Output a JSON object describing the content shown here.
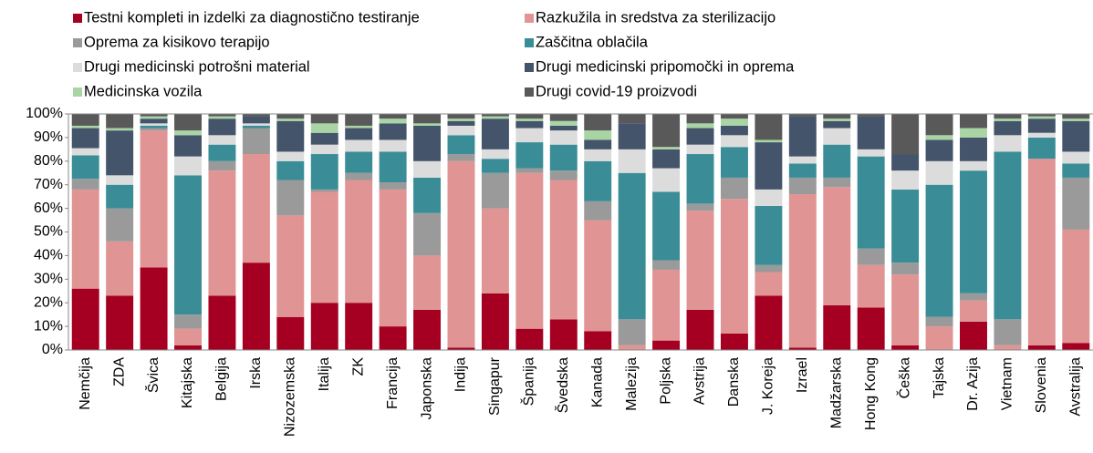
{
  "chart_data": {
    "type": "stacked_bar",
    "categories": [
      "Nemčija",
      "ZDA",
      "Švica",
      "Kitajska",
      "Belgija",
      "Irska",
      "Nizozemska",
      "Italija",
      "ZK",
      "Francija",
      "Japonska",
      "Indija",
      "Singapur",
      "Španija",
      "Švedska",
      "Kanada",
      "Malezija",
      "Poljska",
      "Avstrija",
      "Danska",
      "J. Koreja",
      "Izrael",
      "Madžarska",
      "Hong Kong",
      "Češka",
      "Tajska",
      "Dr. Azija",
      "Vietnam",
      "Slovenia",
      "Avstralija"
    ],
    "series": [
      {
        "name": "Testni kompleti in izdelki za diagnostično testiranje",
        "color": "#a50021",
        "values": [
          26,
          23,
          35,
          2,
          23,
          37,
          14,
          20,
          20,
          10,
          17,
          1,
          24,
          9,
          13,
          8,
          0,
          4,
          17,
          7,
          23,
          1,
          19,
          18,
          2,
          0,
          12,
          0,
          2,
          3
        ]
      },
      {
        "name": "Razkužila in sredstva za sterilizacijo",
        "color": "#e09494",
        "values": [
          42,
          23,
          58,
          7,
          53,
          46,
          43,
          47,
          52,
          58,
          23,
          79,
          36,
          66,
          59,
          47,
          2,
          30,
          42,
          57,
          10,
          65,
          50,
          18,
          30,
          10,
          9,
          2,
          79,
          48
        ]
      },
      {
        "name": "Oprema za kisikovo terapijo",
        "color": "#9a9a9a",
        "values": [
          4.5,
          14,
          1,
          6,
          4,
          11,
          15,
          1,
          3,
          3,
          18,
          3,
          15,
          2,
          4,
          8,
          11,
          4,
          3,
          9,
          3,
          7,
          4,
          7,
          5,
          4,
          3,
          11,
          0,
          22
        ]
      },
      {
        "name": "Zaščitna oblačila",
        "color": "#3a8d96",
        "values": [
          10,
          10,
          1,
          59,
          7,
          1,
          8,
          15,
          9,
          13,
          15,
          8,
          6,
          11,
          11,
          17,
          62,
          29,
          21,
          13,
          25,
          6,
          14,
          39,
          31,
          56,
          52,
          71,
          9,
          6
        ]
      },
      {
        "name": "Drugi medicinski potrošni material",
        "color": "#dcdcdc",
        "values": [
          3,
          4,
          1,
          8,
          4,
          1,
          4,
          4,
          5,
          5,
          7,
          4,
          4,
          6,
          6,
          5,
          10,
          10,
          4,
          5,
          7,
          3,
          7,
          3,
          8,
          10,
          4,
          7,
          2,
          5
        ]
      },
      {
        "name": "Drugi medicinski pripomočki in oprema",
        "color": "#44546a",
        "values": [
          8.5,
          19,
          2,
          9,
          7,
          3,
          13,
          5,
          5,
          7,
          15,
          2,
          13,
          3,
          2,
          4,
          11,
          8,
          7,
          4,
          20,
          17,
          3,
          14,
          7,
          9,
          10,
          6,
          6,
          13
        ]
      },
      {
        "name": "Medicinska vozila",
        "color": "#a9d5a4",
        "values": [
          1,
          1,
          1,
          2,
          1,
          0,
          1,
          4,
          1,
          2,
          1,
          1,
          1,
          1,
          2,
          4,
          0,
          1,
          2,
          3,
          1,
          0,
          1,
          0,
          0,
          2,
          4,
          1,
          1,
          1
        ]
      },
      {
        "name": "Drugi covid-19 proizvodi",
        "color": "#595959",
        "values": [
          5,
          6,
          1,
          7,
          1,
          1,
          2,
          4,
          5,
          2,
          4,
          2,
          1,
          2,
          3,
          7,
          4,
          14,
          4,
          2,
          11,
          1,
          2,
          1,
          17,
          9,
          6,
          2,
          1,
          2
        ]
      }
    ],
    "ylim": [
      0,
      100
    ],
    "yticks": [
      {
        "value": 0,
        "label": "0%"
      },
      {
        "value": 10,
        "label": "10%"
      },
      {
        "value": 20,
        "label": "20%"
      },
      {
        "value": 30,
        "label": "30%"
      },
      {
        "value": 40,
        "label": "40%"
      },
      {
        "value": 50,
        "label": "50%"
      },
      {
        "value": 60,
        "label": "60%"
      },
      {
        "value": 70,
        "label": "70%"
      },
      {
        "value": 80,
        "label": "80%"
      },
      {
        "value": 90,
        "label": "90%"
      },
      {
        "value": 100,
        "label": "100%"
      }
    ]
  }
}
